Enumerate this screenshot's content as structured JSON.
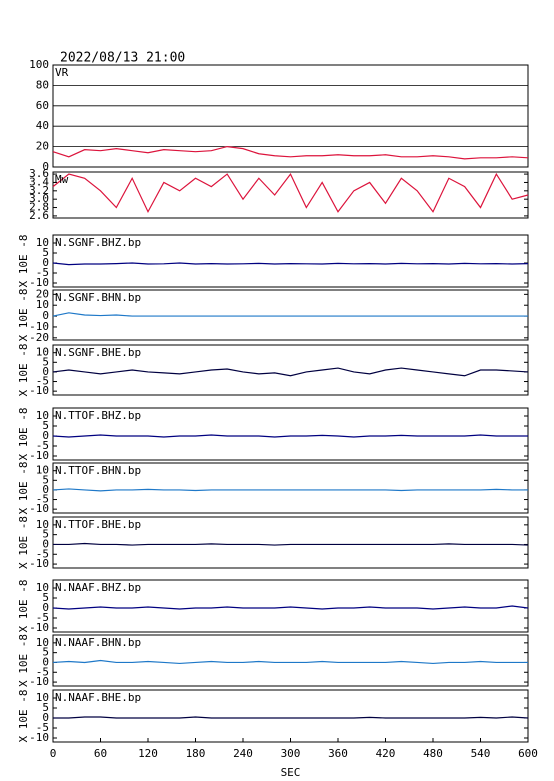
{
  "chart_data": [
    {
      "type": "line",
      "title": "2022/08/13 21:00",
      "label": "VR",
      "grid": true,
      "x": [
        0,
        20,
        40,
        60,
        80,
        100,
        120,
        140,
        160,
        180,
        200,
        220,
        240,
        260,
        280,
        300,
        320,
        340,
        360,
        380,
        400,
        420,
        440,
        460,
        480,
        500,
        520,
        540,
        560,
        580,
        600
      ],
      "series": [
        {
          "color": "#dc143c",
          "values": [
            15,
            10,
            17,
            16,
            18,
            16,
            14,
            17,
            16,
            15,
            16,
            20,
            18,
            13,
            11,
            10,
            11,
            11,
            12,
            11,
            11,
            12,
            10,
            10,
            11,
            10,
            8,
            9,
            9,
            10,
            9
          ]
        }
      ],
      "ylim": [
        0,
        100
      ],
      "yticks": [
        0,
        20,
        40,
        60,
        80,
        100
      ]
    },
    {
      "type": "line",
      "label": "Mw",
      "x": [
        0,
        20,
        40,
        60,
        80,
        100,
        120,
        140,
        160,
        180,
        200,
        220,
        240,
        260,
        280,
        300,
        320,
        340,
        360,
        380,
        400,
        420,
        440,
        460,
        480,
        500,
        520,
        540,
        560,
        580,
        600
      ],
      "series": [
        {
          "color": "#dc143c",
          "values": [
            3.3,
            3.6,
            3.5,
            3.2,
            2.8,
            3.5,
            2.7,
            3.4,
            3.2,
            3.5,
            3.3,
            3.6,
            3.0,
            3.5,
            3.1,
            3.6,
            2.8,
            3.4,
            2.7,
            3.2,
            3.4,
            2.9,
            3.5,
            3.2,
            2.7,
            3.5,
            3.3,
            2.8,
            3.6,
            3.0,
            3.1
          ]
        }
      ],
      "ylim": [
        2.55,
        3.65
      ],
      "yticks": [
        2.6,
        2.8,
        {
          "value": 3.0,
          "label": "3.0"
        },
        3.2,
        3.4,
        3.6
      ]
    },
    {
      "type": "line",
      "label": "N.SGNF.BHZ.bp",
      "ylabel": "X 10E -8",
      "x": [
        0,
        20,
        40,
        60,
        80,
        100,
        120,
        140,
        160,
        180,
        200,
        220,
        240,
        260,
        280,
        300,
        320,
        340,
        360,
        380,
        400,
        420,
        440,
        460,
        480,
        500,
        520,
        540,
        560,
        580,
        600
      ],
      "series": [
        {
          "color": "#000080",
          "values": [
            0,
            -0.8,
            -0.5,
            -0.5,
            -0.3,
            0,
            -0.5,
            -0.4,
            0,
            -0.5,
            -0.3,
            -0.5,
            -0.4,
            -0.2,
            -0.5,
            -0.3,
            -0.4,
            -0.5,
            -0.2,
            -0.4,
            -0.3,
            -0.5,
            -0.2,
            -0.4,
            -0.3,
            -0.5,
            -0.2,
            -0.4,
            -0.3,
            -0.5,
            -0.3
          ]
        }
      ],
      "ylim": [
        -12,
        14
      ],
      "yticks": [
        -10,
        -5,
        0,
        5,
        10
      ]
    },
    {
      "type": "line",
      "label": "N.SGNF.BHN.bp",
      "ylabel": "X 10E -8",
      "x": [
        0,
        20,
        40,
        60,
        80,
        100,
        120,
        140,
        160,
        180,
        200,
        220,
        240,
        260,
        280,
        300,
        320,
        340,
        360,
        380,
        400,
        420,
        440,
        460,
        480,
        500,
        520,
        540,
        560,
        580,
        600
      ],
      "series": [
        {
          "color": "#1e78c8",
          "values": [
            0,
            3,
            1,
            0.5,
            1,
            0,
            0,
            0,
            0,
            0,
            0,
            0,
            0,
            0,
            0,
            0,
            0,
            0,
            0,
            0,
            0,
            0,
            0,
            0,
            0,
            0,
            0,
            0,
            0,
            0,
            0
          ]
        }
      ],
      "ylim": [
        -22,
        24
      ],
      "yticks": [
        -20,
        -10,
        0,
        10,
        20
      ]
    },
    {
      "type": "line",
      "label": "N.SGNF.BHE.bp",
      "ylabel": "X 10E -8",
      "x": [
        0,
        20,
        40,
        60,
        80,
        100,
        120,
        140,
        160,
        180,
        200,
        220,
        240,
        260,
        280,
        300,
        320,
        340,
        360,
        380,
        400,
        420,
        440,
        460,
        480,
        500,
        520,
        540,
        560,
        580,
        600
      ],
      "series": [
        {
          "color": "#000040",
          "values": [
            0,
            1,
            0,
            -1,
            0,
            1,
            0,
            -0.5,
            -1,
            0,
            1,
            1.5,
            0,
            -1,
            -0.5,
            -2,
            0,
            1,
            2,
            0,
            -1,
            1,
            2,
            1,
            0,
            -1,
            -2,
            1,
            1,
            0.5,
            0
          ]
        }
      ],
      "ylim": [
        -12,
        14
      ],
      "yticks": [
        -10,
        -5,
        0,
        5,
        10
      ]
    },
    {
      "type": "line",
      "label": "N.TTOF.BHZ.bp",
      "ylabel": "X 10E -8",
      "x": [
        0,
        20,
        40,
        60,
        80,
        100,
        120,
        140,
        160,
        180,
        200,
        220,
        240,
        260,
        280,
        300,
        320,
        340,
        360,
        380,
        400,
        420,
        440,
        460,
        480,
        500,
        520,
        540,
        560,
        580,
        600
      ],
      "series": [
        {
          "color": "#000080",
          "values": [
            0,
            -0.5,
            0,
            0.5,
            0,
            0,
            0,
            -0.5,
            0,
            0,
            0.5,
            0,
            0,
            0,
            -0.5,
            0,
            0,
            0.3,
            0,
            -0.5,
            0,
            0,
            0.3,
            0,
            0,
            0,
            0,
            0.5,
            0,
            0,
            0
          ]
        }
      ],
      "ylim": [
        -12,
        14
      ],
      "yticks": [
        -10,
        -5,
        0,
        5,
        10
      ]
    },
    {
      "type": "line",
      "label": "N.TTOF.BHN.bp",
      "ylabel": "X 10E -8",
      "x": [
        0,
        20,
        40,
        60,
        80,
        100,
        120,
        140,
        160,
        180,
        200,
        220,
        240,
        260,
        280,
        300,
        320,
        340,
        360,
        380,
        400,
        420,
        440,
        460,
        480,
        500,
        520,
        540,
        560,
        580,
        600
      ],
      "series": [
        {
          "color": "#1e78c8",
          "values": [
            0,
            0.5,
            0,
            -0.5,
            0,
            0,
            0.3,
            0,
            0,
            -0.3,
            0,
            0,
            0,
            0,
            0,
            0,
            0,
            0,
            0,
            0,
            0,
            0,
            -0.3,
            0,
            0,
            0,
            0,
            0,
            0.3,
            0,
            0
          ]
        }
      ],
      "ylim": [
        -12,
        14
      ],
      "yticks": [
        -10,
        -5,
        0,
        5,
        10
      ]
    },
    {
      "type": "line",
      "label": "N.TTOF.BHE.bp",
      "ylabel": "X 10E -8",
      "x": [
        0,
        20,
        40,
        60,
        80,
        100,
        120,
        140,
        160,
        180,
        200,
        220,
        240,
        260,
        280,
        300,
        320,
        340,
        360,
        380,
        400,
        420,
        440,
        460,
        480,
        500,
        520,
        540,
        560,
        580,
        600
      ],
      "series": [
        {
          "color": "#000040",
          "values": [
            0,
            0,
            0.5,
            0,
            0,
            -0.3,
            0,
            0,
            0,
            0,
            0.3,
            0,
            0,
            0,
            -0.3,
            0,
            0,
            0,
            0,
            0,
            0,
            0,
            0,
            0,
            0,
            0.3,
            0,
            0,
            0,
            0,
            -0.3
          ]
        }
      ],
      "ylim": [
        -12,
        14
      ],
      "yticks": [
        -10,
        -5,
        0,
        5,
        10
      ]
    },
    {
      "type": "line",
      "label": "N.NAAF.BHZ.bp",
      "ylabel": "X 10E -8",
      "x": [
        0,
        20,
        40,
        60,
        80,
        100,
        120,
        140,
        160,
        180,
        200,
        220,
        240,
        260,
        280,
        300,
        320,
        340,
        360,
        380,
        400,
        420,
        440,
        460,
        480,
        500,
        520,
        540,
        560,
        580,
        600
      ],
      "series": [
        {
          "color": "#000080",
          "values": [
            0,
            -0.5,
            0,
            0.5,
            0,
            0,
            0.5,
            0,
            -0.5,
            0,
            0,
            0.5,
            0,
            0,
            0,
            0.5,
            0,
            -0.5,
            0,
            0,
            0.5,
            0,
            0,
            0,
            -0.5,
            0,
            0.5,
            0,
            0,
            1,
            0
          ]
        }
      ],
      "ylim": [
        -12,
        14
      ],
      "yticks": [
        -10,
        -5,
        0,
        5,
        10
      ]
    },
    {
      "type": "line",
      "label": "N.NAAF.BHN.bp",
      "ylabel": "X 10E -8",
      "x": [
        0,
        20,
        40,
        60,
        80,
        100,
        120,
        140,
        160,
        180,
        200,
        220,
        240,
        260,
        280,
        300,
        320,
        340,
        360,
        380,
        400,
        420,
        440,
        460,
        480,
        500,
        520,
        540,
        560,
        580,
        600
      ],
      "series": [
        {
          "color": "#1e78c8",
          "values": [
            0,
            0.5,
            0,
            1,
            0,
            0,
            0.5,
            0,
            -0.5,
            0,
            0.5,
            0,
            0,
            0.5,
            0,
            0,
            0,
            0.5,
            0,
            0,
            0,
            0,
            0.5,
            0,
            -0.5,
            0,
            0,
            0.5,
            0,
            0,
            0
          ]
        }
      ],
      "ylim": [
        -12,
        14
      ],
      "yticks": [
        -10,
        -5,
        0,
        5,
        10
      ]
    },
    {
      "type": "line",
      "label": "N.NAAF.BHE.bp",
      "ylabel": "X 10E -8",
      "xlabel": "SEC",
      "x": [
        0,
        20,
        40,
        60,
        80,
        100,
        120,
        140,
        160,
        180,
        200,
        220,
        240,
        260,
        280,
        300,
        320,
        340,
        360,
        380,
        400,
        420,
        440,
        460,
        480,
        500,
        520,
        540,
        560,
        580,
        600
      ],
      "series": [
        {
          "color": "#000040",
          "values": [
            0,
            0,
            0.5,
            0.5,
            0,
            0,
            0,
            0,
            0,
            0.5,
            0,
            0,
            0,
            0,
            0,
            0,
            0,
            0,
            0,
            0,
            0.3,
            0,
            0,
            0,
            0,
            0,
            0,
            0.3,
            0,
            0.5,
            0
          ]
        }
      ],
      "ylim": [
        -12,
        14
      ],
      "yticks": [
        -10,
        -5,
        0,
        5,
        10
      ],
      "xlim": [
        0,
        600
      ],
      "xticks": [
        0,
        60,
        120,
        180,
        240,
        300,
        360,
        420,
        480,
        540,
        600
      ]
    }
  ]
}
